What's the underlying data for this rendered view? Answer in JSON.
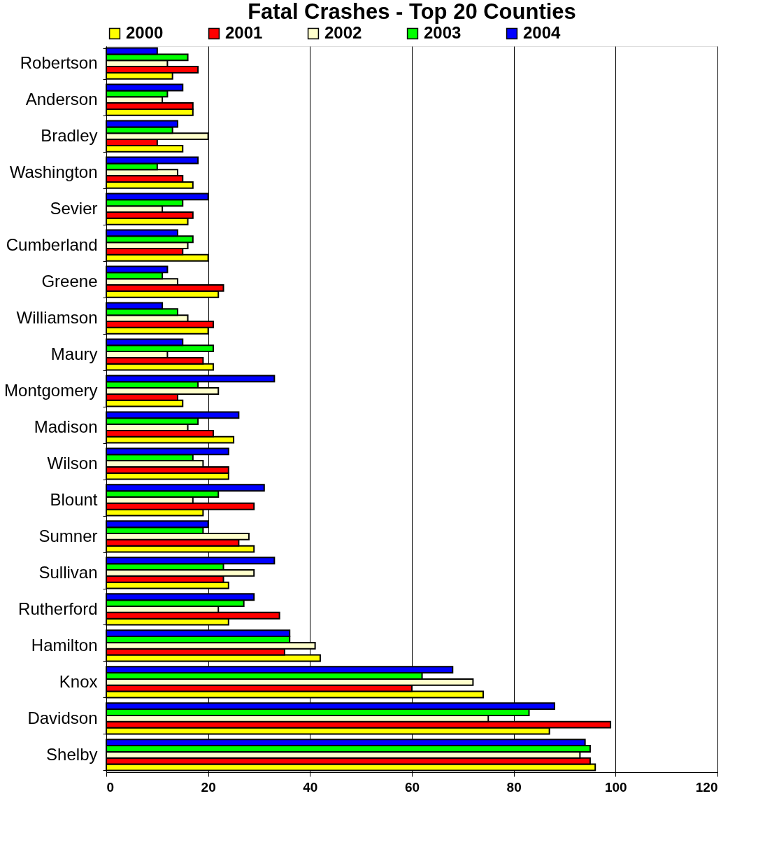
{
  "chart_data": {
    "type": "bar",
    "orientation": "horizontal",
    "title": "Fatal Crashes - Top 20 Counties",
    "categories": [
      "Robertson",
      "Anderson",
      "Bradley",
      "Washington",
      "Sevier",
      "Cumberland",
      "Greene",
      "Williamson",
      "Maury",
      "Montgomery",
      "Madison",
      "Wilson",
      "Blount",
      "Sumner",
      "Sullivan",
      "Rutherford",
      "Hamilton",
      "Knox",
      "Davidson",
      "Shelby"
    ],
    "series": [
      {
        "name": "2000",
        "color": "#ffff00",
        "values": [
          13,
          17,
          15,
          17,
          16,
          20,
          22,
          20,
          21,
          15,
          25,
          24,
          19,
          29,
          24,
          24,
          42,
          74,
          87,
          96
        ]
      },
      {
        "name": "2001",
        "color": "#ff0000",
        "values": [
          18,
          17,
          10,
          15,
          17,
          15,
          23,
          21,
          19,
          14,
          21,
          24,
          29,
          26,
          23,
          34,
          35,
          60,
          99,
          95
        ]
      },
      {
        "name": "2002",
        "color": "#ffffcc",
        "values": [
          12,
          11,
          20,
          14,
          11,
          16,
          14,
          16,
          12,
          22,
          16,
          19,
          17,
          28,
          29,
          22,
          41,
          72,
          75,
          93
        ]
      },
      {
        "name": "2003",
        "color": "#00ff00",
        "values": [
          16,
          12,
          13,
          10,
          15,
          17,
          11,
          14,
          21,
          18,
          18,
          17,
          22,
          19,
          23,
          27,
          36,
          62,
          83,
          95
        ]
      },
      {
        "name": "2004",
        "color": "#0000ff",
        "values": [
          10,
          15,
          14,
          18,
          20,
          14,
          12,
          11,
          15,
          33,
          26,
          24,
          31,
          20,
          33,
          29,
          36,
          68,
          88,
          94
        ]
      }
    ],
    "xlim": [
      0,
      120
    ],
    "xticks": [
      0,
      20,
      40,
      60,
      80,
      100,
      120
    ],
    "grid": "x",
    "legend": "top"
  }
}
